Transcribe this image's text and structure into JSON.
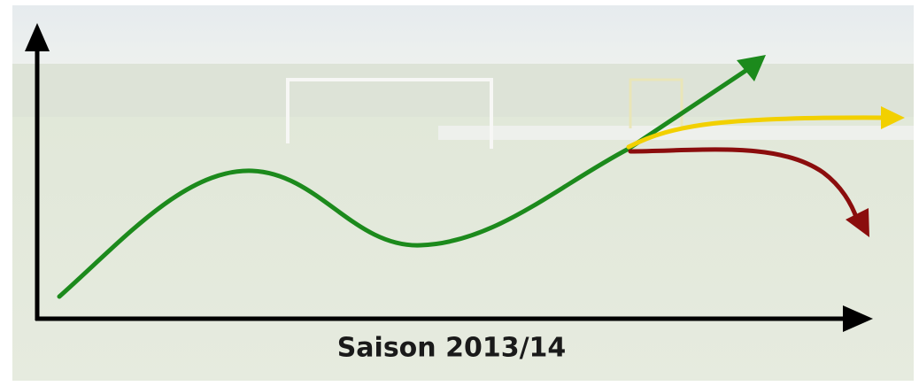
{
  "x_axis_label": "Saison 2013/14"
}
